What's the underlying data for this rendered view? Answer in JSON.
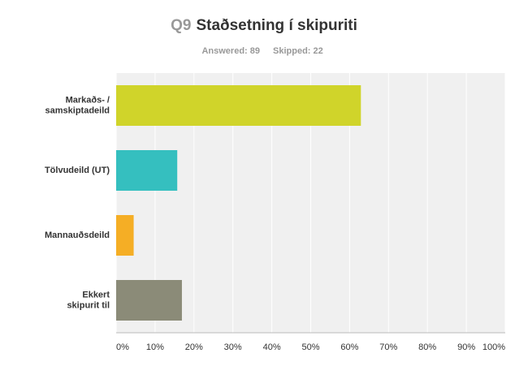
{
  "chart_data": {
    "type": "hbar",
    "question_number": "Q9",
    "title": "Staðsetning í skipuriti",
    "answered": "Answered: 89",
    "skipped": "Skipped: 22",
    "categories": [
      [
        "Markaðs- /",
        "samskiptadeild"
      ],
      [
        "Tölvudeild (UT)"
      ],
      [
        "Mannauðsdeild"
      ],
      [
        "Ekkert",
        "skipurit til"
      ]
    ],
    "values": [
      62.9,
      15.7,
      4.5,
      16.9
    ],
    "colors": [
      "#d0d42a",
      "#35bfbf",
      "#f5ae25",
      "#8b8b78"
    ],
    "xlim": [
      0,
      100
    ],
    "xticks": [
      {
        "value": 0,
        "label": "0%"
      },
      {
        "value": 10,
        "label": "10%"
      },
      {
        "value": 20,
        "label": "20%"
      },
      {
        "value": 30,
        "label": "30%"
      },
      {
        "value": 40,
        "label": "40%"
      },
      {
        "value": 50,
        "label": "50%"
      },
      {
        "value": 60,
        "label": "60%"
      },
      {
        "value": 70,
        "label": "70%"
      },
      {
        "value": 80,
        "label": "80%"
      },
      {
        "value": 90,
        "label": "90%"
      },
      {
        "value": 100,
        "label": "100%"
      }
    ],
    "grid": true
  }
}
